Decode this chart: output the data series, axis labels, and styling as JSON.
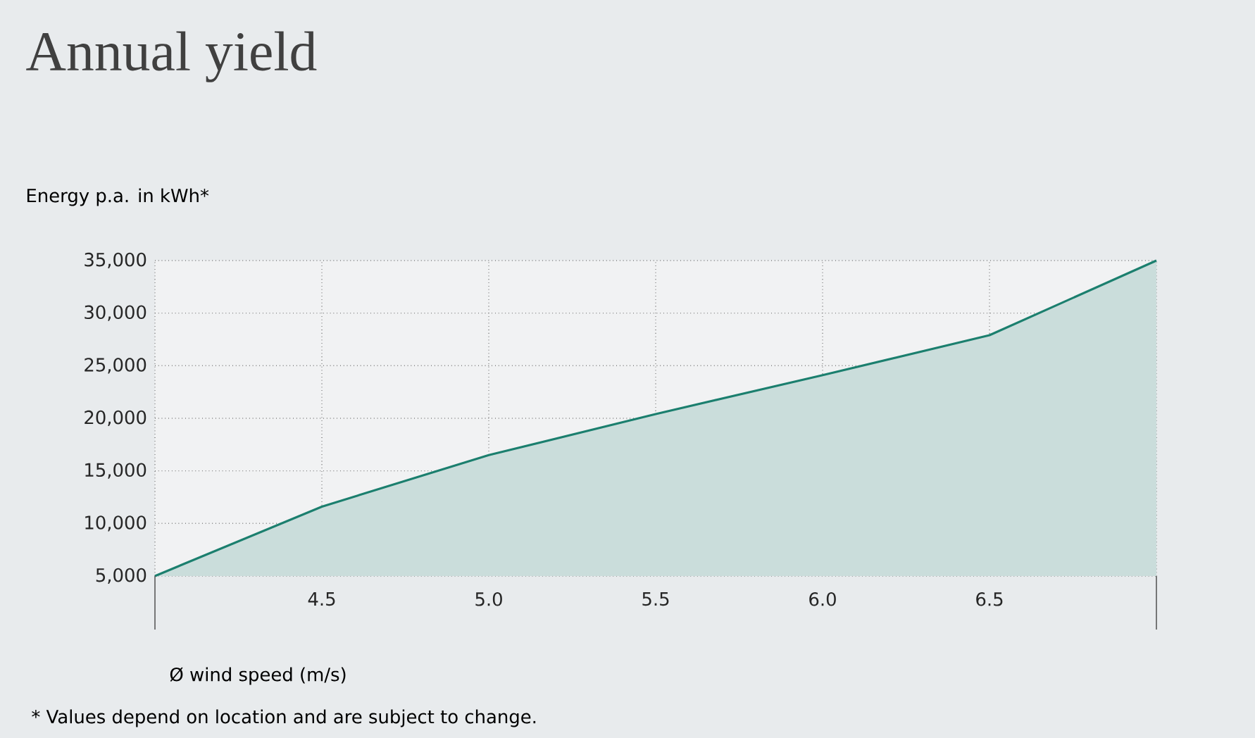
{
  "chart_data": {
    "type": "area",
    "title": "Annual yield",
    "ylabel": "Energy p.a. in kWh*",
    "xlabel": "Ø wind speed (m/s)",
    "annotations": [
      "* Values depend on location and are subject to change."
    ],
    "x": [
      4.0,
      4.5,
      5.0,
      5.5,
      6.0,
      6.5,
      7.0
    ],
    "series": [
      {
        "color": "#1b7f6e",
        "values": [
          5000,
          11600,
          16500,
          20400,
          24100,
          27900,
          35000
        ]
      }
    ],
    "xlim": [
      4.0,
      7.0
    ],
    "xticks": [
      {
        "value": 4.0,
        "label": null
      },
      4.5,
      {
        "value": 5.0,
        "label": "5.0"
      },
      5.5,
      {
        "value": 6.0,
        "label": "6.0"
      },
      6.5,
      {
        "value": 7.0,
        "label": null
      }
    ],
    "ylim": [
      5000,
      35000
    ],
    "yticks": [
      {
        "value": 5000,
        "label": "5,000"
      },
      {
        "value": 10000,
        "label": "10,000"
      },
      {
        "value": 15000,
        "label": "15,000"
      },
      {
        "value": 20000,
        "label": "20,000"
      },
      {
        "value": 25000,
        "label": "25,000"
      },
      {
        "value": 30000,
        "label": "30,000"
      },
      {
        "value": 35000,
        "label": "35,000"
      }
    ],
    "grid": true,
    "marker": "none"
  }
}
